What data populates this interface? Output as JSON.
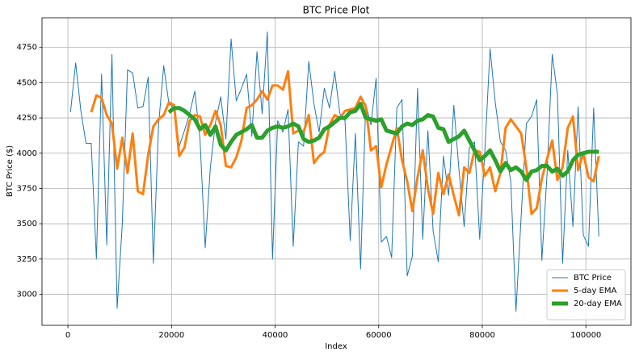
{
  "chart_data": {
    "type": "line",
    "title": "BTC Price Plot",
    "x_label": "Index",
    "y_label": "BTC Price ($)",
    "x": [
      500,
      1500,
      2500,
      3500,
      4500,
      5500,
      6500,
      7500,
      8500,
      9500,
      10500,
      11500,
      12500,
      13500,
      14500,
      15500,
      16500,
      17500,
      18500,
      19500,
      20500,
      21500,
      22500,
      23500,
      24500,
      25500,
      26500,
      27500,
      28500,
      29500,
      30500,
      31500,
      32500,
      33500,
      34500,
      35500,
      36500,
      37500,
      38500,
      39500,
      40500,
      41500,
      42500,
      43500,
      44500,
      45500,
      46500,
      47500,
      48500,
      49500,
      50500,
      51500,
      52500,
      53500,
      54500,
      55500,
      56500,
      57500,
      58500,
      59500,
      60500,
      61500,
      62500,
      63500,
      64500,
      65500,
      66500,
      67500,
      68500,
      69500,
      70500,
      71500,
      72500,
      73500,
      74500,
      75500,
      76500,
      77500,
      78500,
      79500,
      80500,
      81500,
      82500,
      83500,
      84500,
      85500,
      86500,
      87500,
      88500,
      89500,
      90500,
      91500,
      92500,
      93500,
      94500,
      95500,
      96500,
      97500,
      98500,
      99500,
      100500,
      101500,
      102500
    ],
    "series": [
      {
        "name": "BTC Price",
        "color": "#1f77b4",
        "line_width": 1,
        "values": [
          4290,
          4640,
          4300,
          4070,
          4070,
          3250,
          4560,
          3350,
          4700,
          2900,
          3500,
          4590,
          4570,
          4320,
          4330,
          4540,
          3220,
          4200,
          4620,
          4350,
          4320,
          4050,
          4160,
          4280,
          4440,
          4100,
          3330,
          3900,
          4220,
          4400,
          4100,
          4810,
          4370,
          4460,
          4560,
          4120,
          4720,
          4280,
          4860,
          3250,
          4230,
          4150,
          4310,
          3340,
          4080,
          4050,
          4650,
          4350,
          4150,
          4460,
          4320,
          4580,
          4280,
          4230,
          3380,
          4140,
          3180,
          4350,
          4200,
          4530,
          3370,
          3410,
          3260,
          4320,
          4380,
          3130,
          3270,
          4460,
          3390,
          4160,
          3450,
          3230,
          3980,
          3700,
          4340,
          3880,
          3480,
          4040,
          4080,
          3390,
          4020,
          4740,
          4360,
          4080,
          4020,
          3800,
          2880,
          3550,
          4210,
          4260,
          4380,
          3240,
          3850,
          4700,
          4420,
          3220,
          4020,
          3480,
          4330,
          3420,
          3340,
          4320,
          3410
        ]
      },
      {
        "name": "5-day EMA",
        "color": "#ff7f0e",
        "line_width": 3,
        "values": [
          null,
          null,
          null,
          null,
          4290,
          4410,
          4390,
          4270,
          4210,
          3890,
          4110,
          3860,
          4140,
          3730,
          3710,
          3990,
          4190,
          4240,
          4270,
          4360,
          4340,
          3980,
          4040,
          4230,
          4270,
          4260,
          4130,
          4200,
          4300,
          4200,
          3910,
          3900,
          3970,
          4090,
          4320,
          4340,
          4380,
          4440,
          4380,
          4480,
          4480,
          4450,
          4580,
          4140,
          4160,
          4150,
          4270,
          3930,
          3980,
          4010,
          4200,
          4270,
          4250,
          4300,
          4310,
          4320,
          4400,
          4330,
          4020,
          4050,
          3760,
          3920,
          4050,
          4180,
          3950,
          3800,
          3590,
          3830,
          4020,
          3750,
          3570,
          3860,
          3710,
          3850,
          3700,
          3560,
          3900,
          3860,
          4020,
          4010,
          3840,
          3900,
          3730,
          3860,
          4180,
          4240,
          4190,
          4140,
          3900,
          3570,
          3610,
          3820,
          3960,
          4090,
          3810,
          3900,
          4180,
          4260,
          3880,
          4000,
          3830,
          3800,
          3980
        ]
      },
      {
        "name": "20-day EMA",
        "color": "#2ca02c",
        "line_width": 5,
        "values": [
          null,
          null,
          null,
          null,
          null,
          null,
          null,
          null,
          null,
          null,
          null,
          null,
          null,
          null,
          null,
          null,
          null,
          null,
          null,
          4290,
          4320,
          4320,
          4300,
          4270,
          4240,
          4170,
          4200,
          4130,
          4190,
          4060,
          4020,
          4080,
          4130,
          4150,
          4170,
          4200,
          4110,
          4110,
          4160,
          4180,
          4190,
          4180,
          4190,
          4210,
          4190,
          4100,
          4080,
          4090,
          4110,
          4170,
          4190,
          4220,
          4250,
          4250,
          4290,
          4300,
          4350,
          4250,
          4240,
          4230,
          4240,
          4160,
          4150,
          4140,
          4190,
          4210,
          4200,
          4230,
          4240,
          4270,
          4260,
          4180,
          4170,
          4080,
          4100,
          4120,
          4160,
          4090,
          4020,
          3950,
          3980,
          4020,
          3950,
          3870,
          3930,
          3880,
          3900,
          3870,
          3810,
          3870,
          3880,
          3910,
          3910,
          3870,
          3890,
          3840,
          3870,
          3950,
          3990,
          4000,
          4010,
          4010,
          4010
        ]
      }
    ],
    "xlim": [
      -5000,
      108700
    ],
    "ylim": [
      2780,
      4960
    ],
    "xticks": [
      0,
      20000,
      40000,
      60000,
      80000,
      100000
    ],
    "yticks": [
      3000,
      3250,
      3500,
      3750,
      4000,
      4250,
      4500,
      4750
    ],
    "grid": true,
    "legend": "lower right"
  }
}
